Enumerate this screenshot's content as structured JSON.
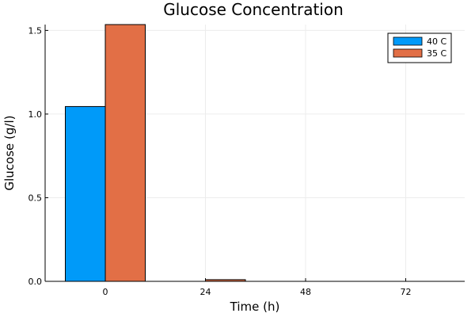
{
  "chart_data": {
    "type": "bar",
    "title": "Glucose Concentration",
    "xlabel": "Time (h)",
    "ylabel": "Glucose (g/l)",
    "categories": [
      "0",
      "24",
      "48",
      "72"
    ],
    "series": [
      {
        "name": "40 C",
        "color": "#009af9",
        "values": [
          1.045,
          0.0,
          0.0,
          0.0
        ]
      },
      {
        "name": "35 C",
        "color": "#e26f46",
        "values": [
          1.535,
          0.01,
          0.0,
          0.0
        ]
      }
    ],
    "ylim": [
      0,
      1.535
    ],
    "yticks": [
      0.0,
      0.5,
      1.0,
      1.5
    ],
    "ytick_labels": [
      "0.0",
      "0.5",
      "1.0",
      "1.5"
    ],
    "grid": true,
    "legend_position": "top-right"
  }
}
